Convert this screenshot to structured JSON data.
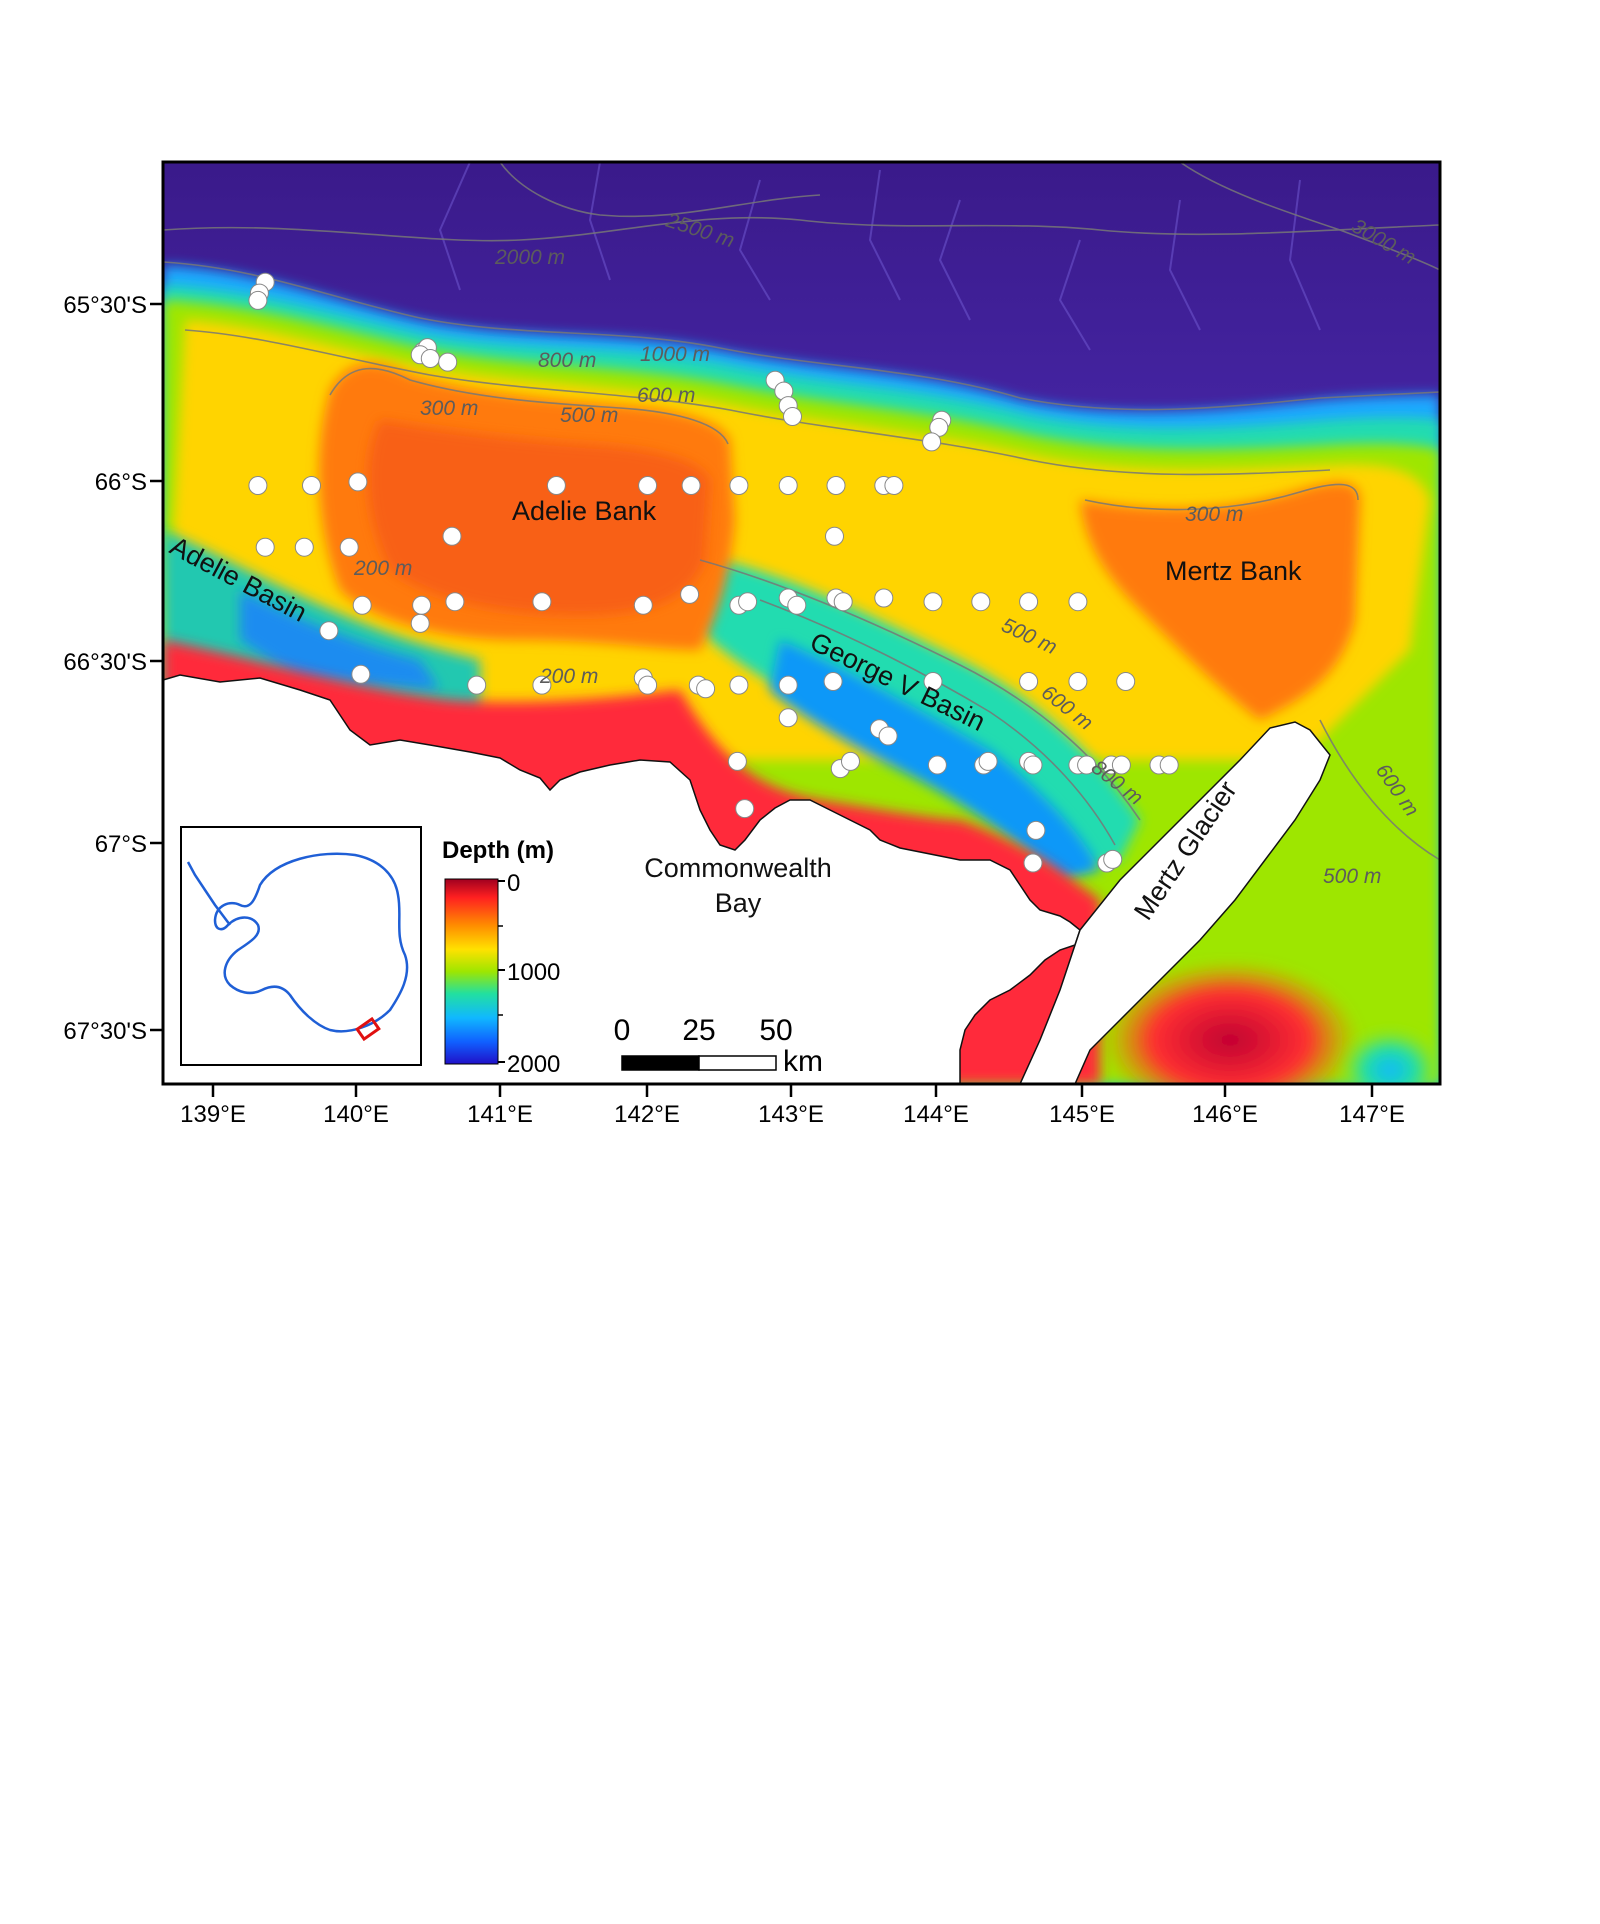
{
  "map": {
    "lat_labels": [
      "65°30'S",
      "66°S",
      "66°30'S",
      "67°S",
      "67°30'S"
    ],
    "lon_labels": [
      "139°E",
      "140°E",
      "141°E",
      "142°E",
      "143°E",
      "144°E",
      "145°E",
      "146°E",
      "147°E"
    ],
    "places": {
      "adelie_bank": "Adelie Bank",
      "adelie_basin": "Adelie Basin",
      "mertz_bank": "Mertz Bank",
      "george_v_basin": "George V Basin",
      "commonwealth_bay_1": "Commonwealth",
      "commonwealth_bay_2": "Bay",
      "mertz_glacier": "Mertz Glacier"
    },
    "contours": [
      "2000 m",
      "2500 m",
      "3000 m",
      "800 m",
      "1000 m",
      "600 m",
      "500 m",
      "300 m",
      "200 m",
      "300 m",
      "500 m",
      "600 m",
      "800 m",
      "200 m",
      "600 m",
      "500 m"
    ],
    "sample_station_count_note": "",
    "stations": [
      [
        139.36,
        -65.44
      ],
      [
        139.32,
        -65.47
      ],
      [
        139.31,
        -65.49
      ],
      [
        140.45,
        -65.63
      ],
      [
        140.48,
        -65.62
      ],
      [
        140.43,
        -65.64
      ],
      [
        140.5,
        -65.65
      ],
      [
        140.62,
        -65.66
      ],
      [
        142.88,
        -65.71
      ],
      [
        142.94,
        -65.74
      ],
      [
        142.97,
        -65.78
      ],
      [
        143.0,
        -65.81
      ],
      [
        144.03,
        -65.82
      ],
      [
        144.01,
        -65.84
      ],
      [
        143.96,
        -65.88
      ],
      [
        139.31,
        -66.0
      ],
      [
        139.68,
        -66.0
      ],
      [
        140.0,
        -65.99
      ],
      [
        141.37,
        -66.0
      ],
      [
        142.0,
        -66.0
      ],
      [
        142.3,
        -66.0
      ],
      [
        142.63,
        -66.0
      ],
      [
        142.97,
        -66.0
      ],
      [
        143.3,
        -66.0
      ],
      [
        143.63,
        -66.0
      ],
      [
        143.7,
        -66.0
      ],
      [
        139.36,
        -66.17
      ],
      [
        139.63,
        -66.17
      ],
      [
        139.94,
        -66.17
      ],
      [
        140.65,
        -66.14
      ],
      [
        143.29,
        -66.14
      ],
      [
        140.03,
        -66.33
      ],
      [
        140.44,
        -66.33
      ],
      [
        140.67,
        -66.32
      ],
      [
        141.27,
        -66.32
      ],
      [
        141.97,
        -66.33
      ],
      [
        142.29,
        -66.3
      ],
      [
        142.63,
        -66.33
      ],
      [
        142.69,
        -66.32
      ],
      [
        142.97,
        -66.31
      ],
      [
        143.03,
        -66.33
      ],
      [
        143.3,
        -66.31
      ],
      [
        143.35,
        -66.32
      ],
      [
        143.63,
        -66.31
      ],
      [
        143.97,
        -66.32
      ],
      [
        144.3,
        -66.32
      ],
      [
        144.63,
        -66.32
      ],
      [
        144.97,
        -66.32
      ],
      [
        140.43,
        -66.38
      ],
      [
        139.8,
        -66.4
      ],
      [
        140.02,
        -66.52
      ],
      [
        140.82,
        -66.55
      ],
      [
        141.27,
        -66.55
      ],
      [
        141.97,
        -66.53
      ],
      [
        142.0,
        -66.55
      ],
      [
        142.35,
        -66.55
      ],
      [
        142.4,
        -66.56
      ],
      [
        142.63,
        -66.55
      ],
      [
        142.97,
        -66.55
      ],
      [
        143.28,
        -66.54
      ],
      [
        143.97,
        -66.54
      ],
      [
        144.63,
        -66.54
      ],
      [
        144.97,
        -66.54
      ],
      [
        145.3,
        -66.54
      ],
      [
        142.97,
        -66.64
      ],
      [
        143.6,
        -66.67
      ],
      [
        143.66,
        -66.69
      ],
      [
        142.62,
        -66.76
      ],
      [
        143.33,
        -66.78
      ],
      [
        143.4,
        -66.76
      ],
      [
        144.0,
        -66.77
      ],
      [
        144.32,
        -66.77
      ],
      [
        144.35,
        -66.76
      ],
      [
        144.63,
        -66.76
      ],
      [
        144.66,
        -66.77
      ],
      [
        144.97,
        -66.77
      ],
      [
        145.03,
        -66.77
      ],
      [
        145.2,
        -66.77
      ],
      [
        145.27,
        -66.77
      ],
      [
        145.53,
        -66.77
      ],
      [
        145.6,
        -66.77
      ],
      [
        142.67,
        -66.89
      ],
      [
        144.68,
        -66.95
      ],
      [
        144.66,
        -67.04
      ],
      [
        145.17,
        -67.04
      ],
      [
        145.21,
        -67.03
      ]
    ]
  },
  "legend": {
    "title": "Depth (m)",
    "ticks": [
      "0",
      "1000",
      "2000"
    ],
    "colors": [
      "#c00030",
      "#ff2a1a",
      "#ff8c00",
      "#ffe100",
      "#9ee600",
      "#22e0a0",
      "#10b8ff",
      "#1060ff",
      "#2010c8"
    ]
  },
  "scale_bar": {
    "ticks": [
      "0",
      "25",
      "50"
    ],
    "unit": "km"
  },
  "inset": {
    "highlight_color": "#e01010",
    "coast_color": "#1f5fd6"
  }
}
